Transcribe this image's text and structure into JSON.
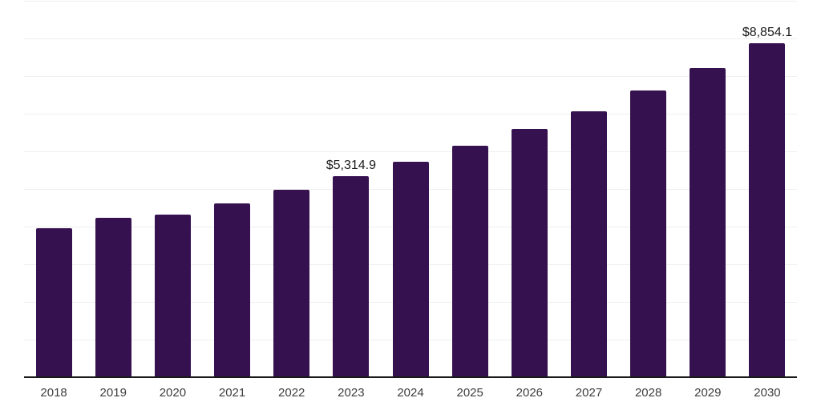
{
  "chart_data": {
    "type": "bar",
    "title": "",
    "xlabel": "",
    "ylabel": "",
    "categories": [
      "2018",
      "2019",
      "2020",
      "2021",
      "2022",
      "2023",
      "2024",
      "2025",
      "2026",
      "2027",
      "2028",
      "2029",
      "2030"
    ],
    "values": [
      3930,
      4205,
      4290,
      4600,
      4955,
      5314.9,
      5710,
      6120,
      6575,
      7050,
      7595,
      8190,
      8854.1
    ],
    "value_labels": {
      "2023": "$5,314.9",
      "2030": "$8,854.1"
    },
    "ylim": [
      0,
      10000
    ],
    "gridline_step": 1000,
    "grid": true,
    "legend": false,
    "bar_color": "#35114f",
    "axis_line_color": "#1a1a1a",
    "gridline_color": "#efefef",
    "tick_label_color": "#3d3d3d",
    "value_label_color": "#1a1a1a"
  }
}
